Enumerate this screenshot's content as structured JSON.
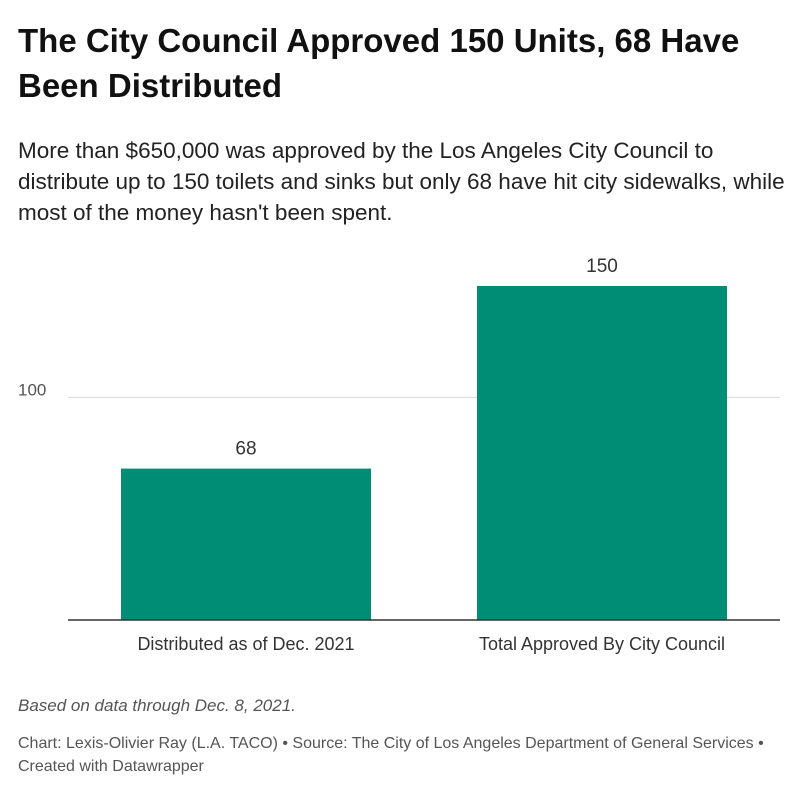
{
  "header": {
    "title": "The City Council Approved 150 Units, 68 Have Been Distributed",
    "subtitle": "More than $650,000 was approved by the Los Angeles City Council to distribute up to 150 toilets and sinks but only 68 have hit city sidewalks, while most of the money hasn't been spent."
  },
  "footer": {
    "notes": "Based on data through Dec. 8, 2021.",
    "credits": "Chart: Lexis-Olivier Ray (L.A. TACO) • Source: The City of Los Angeles Department of General Services • Created with Datawrapper"
  },
  "chart_data": {
    "type": "bar",
    "categories": [
      "Distributed as of Dec. 2021",
      "Total Approved By City Council"
    ],
    "values": [
      68,
      150
    ],
    "value_labels": [
      "68",
      "150"
    ],
    "yticks": [
      100
    ],
    "ytick_labels": [
      "100"
    ],
    "ylim": [
      0,
      150
    ],
    "grid": true,
    "bar_color": "#008d76",
    "xlabel": "",
    "ylabel": ""
  }
}
